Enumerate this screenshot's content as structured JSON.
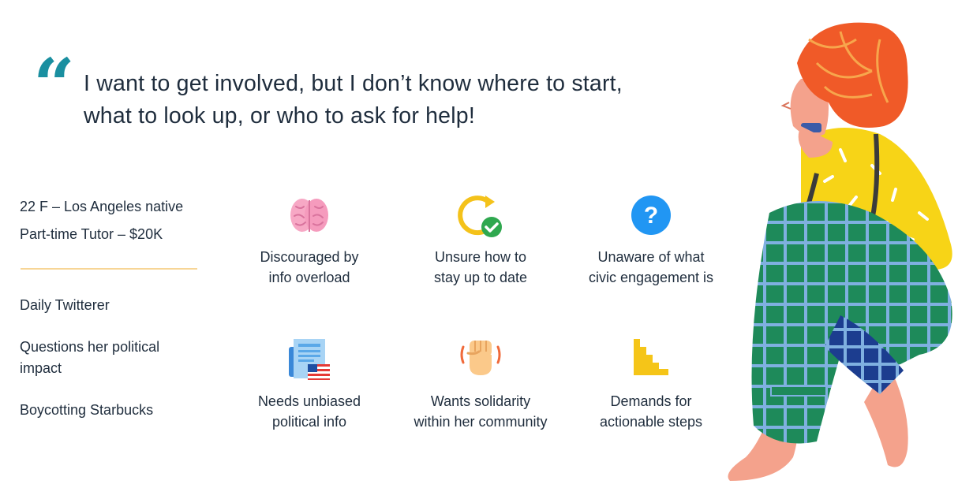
{
  "quote": {
    "mark": "“",
    "text_line1": "I want to get involved, but I don’t know where to start,",
    "text_line2": "what to look up, or who to ask for help!"
  },
  "persona": {
    "demographic": "22 F – Los Angeles native",
    "occupation": "Part-time Tutor – $20K",
    "traits": [
      "Daily Twitterer",
      "Questions her political impact",
      "Boycotting Starbucks"
    ]
  },
  "cards": [
    {
      "icon": "brain-icon",
      "line1": "Discouraged by",
      "line2": "info overload"
    },
    {
      "icon": "refresh-check-icon",
      "line1": "Unsure how to",
      "line2": "stay up to date"
    },
    {
      "icon": "question-icon",
      "line1": "Unaware of what",
      "line2": "civic engagement is"
    },
    {
      "icon": "newspaper-flag-icon",
      "line1": "Needs unbiased",
      "line2": "political info"
    },
    {
      "icon": "raised-fist-icon",
      "line1": "Wants solidarity",
      "line2": "within her community"
    },
    {
      "icon": "stairs-icon",
      "line1": "Demands for",
      "line2": "actionable steps"
    }
  ],
  "colors": {
    "accent": "#1a8fa0",
    "divider": "#f7d596",
    "text": "#1f2d3d"
  }
}
